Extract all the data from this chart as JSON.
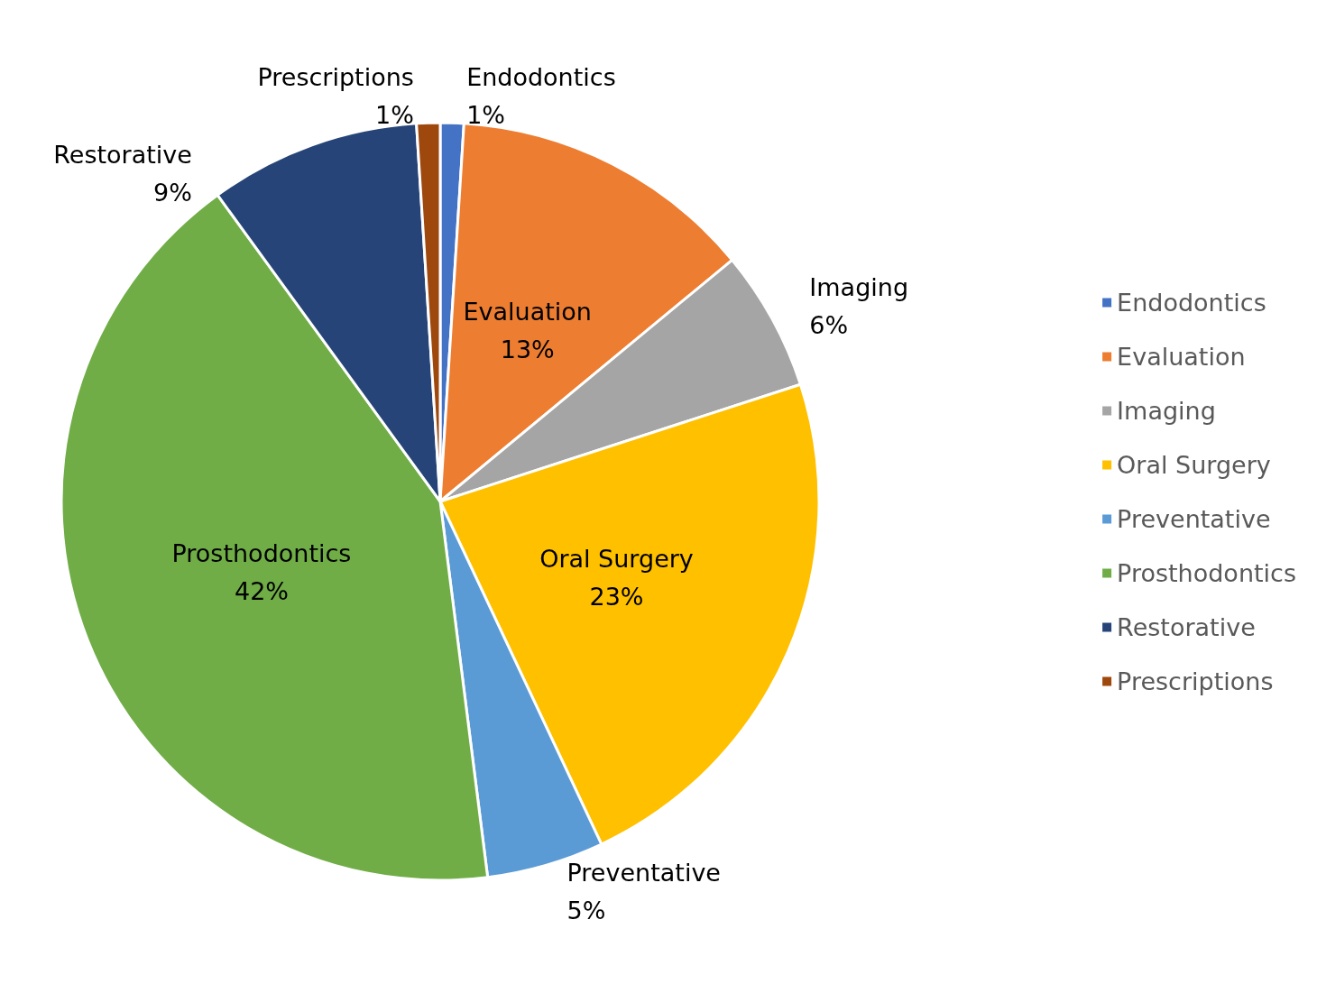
{
  "chart_data": {
    "type": "pie",
    "categories": [
      "Endodontics",
      "Evaluation",
      "Imaging",
      "Oral Surgery",
      "Preventative",
      "Prosthodontics",
      "Restorative",
      "Prescriptions"
    ],
    "values": [
      1,
      13,
      6,
      23,
      5,
      42,
      9,
      1
    ],
    "colors": [
      "#4472c4",
      "#ed7d31",
      "#a5a5a5",
      "#ffc000",
      "#5b9bd5",
      "#70ad47",
      "#264478",
      "#9e480e"
    ],
    "value_labels": [
      "1%",
      "13%",
      "6%",
      "23%",
      "5%",
      "42%",
      "9%",
      "1%"
    ],
    "legend": "right"
  }
}
